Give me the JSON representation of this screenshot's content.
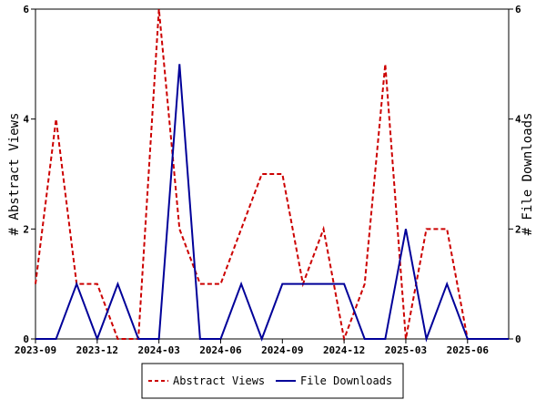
{
  "chart_data": {
    "type": "line",
    "x": [
      "2023-09",
      "2023-10",
      "2023-11",
      "2023-12",
      "2024-01",
      "2024-02",
      "2024-03",
      "2024-04",
      "2024-05",
      "2024-06",
      "2024-07",
      "2024-08",
      "2024-09",
      "2024-10",
      "2024-11",
      "2024-12",
      "2025-01",
      "2025-02",
      "2025-03",
      "2025-04",
      "2025-05",
      "2025-06",
      "2025-07",
      "2025-08"
    ],
    "series": [
      {
        "name": "Abstract Views",
        "axis": "left",
        "color": "#cc0000",
        "dash": "dashed",
        "values": [
          1,
          4,
          1,
          1,
          0,
          0,
          6,
          2,
          1,
          1,
          2,
          3,
          3,
          1,
          2,
          0,
          1,
          5,
          0,
          2,
          2,
          0,
          0,
          0
        ]
      },
      {
        "name": "File Downloads",
        "axis": "right",
        "color": "#000099",
        "dash": "solid",
        "values": [
          0,
          0,
          1,
          0,
          1,
          0,
          0,
          5,
          0,
          0,
          1,
          0,
          1,
          1,
          1,
          1,
          0,
          0,
          2,
          0,
          1,
          0,
          0,
          0
        ]
      }
    ],
    "xticks": [
      "2023-09",
      "2023-12",
      "2024-03",
      "2024-06",
      "2024-09",
      "2024-12",
      "2025-03",
      "2025-06"
    ],
    "ylabel": "# Abstract Views",
    "y2label": "# File Downloads",
    "ylim": [
      0,
      6
    ],
    "y2lim": [
      0,
      6
    ],
    "yticks": [
      0,
      2,
      4,
      6
    ],
    "y2ticks": [
      0,
      2,
      4,
      6
    ],
    "legend_position": "bottom",
    "grid": false
  }
}
